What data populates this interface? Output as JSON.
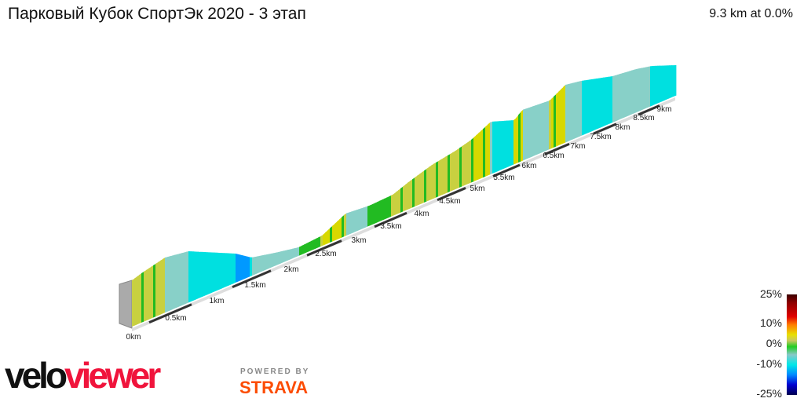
{
  "title": "Парковый Кубок СпортЭк 2020 - 3 этап",
  "summary": "9.3 km at 0.0%",
  "distance_ticks": [
    "0km",
    "0.5km",
    "1km",
    "1.5km",
    "2km",
    "2.5km",
    "3km",
    "3.5km",
    "4km",
    "4.5km",
    "5km",
    "5.5km",
    "6km",
    "6.5km",
    "7km",
    "7.5km",
    "8km",
    "8.5km",
    "9km"
  ],
  "legend": {
    "labels": [
      "25%",
      "10%",
      "0%",
      "-10%",
      "-25%"
    ]
  },
  "grade_colors": {
    "steep_up": "#d8d800",
    "up": "#c8d040",
    "flat": "#22bb22",
    "down": "#88d0c8",
    "steep_down": "#00e0e0",
    "very_down": "#0099ff"
  },
  "logo": {
    "part1": "velo",
    "part2": "viewer"
  },
  "powered": "POWERED BY",
  "strava": "STRAVA"
}
